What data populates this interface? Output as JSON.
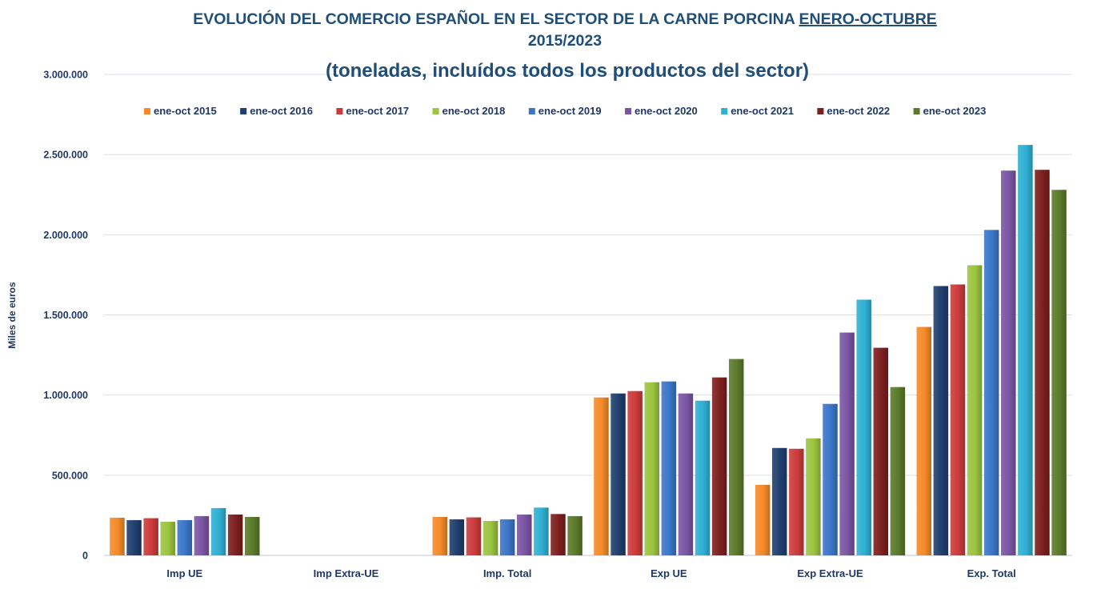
{
  "chart_data": {
    "type": "bar",
    "title_prefix": "EVOLUCIÓN DEL COMERCIO ESPAÑOL EN EL SECTOR DE LA CARNE PORCINA ",
    "title_underlined": "ENERO-OCTUBRE",
    "title_line2": "2015/2023",
    "subtitle": "(toneladas, incluídos todos los productos del sector)",
    "ylabel": "Miles de euros",
    "xlabel": "",
    "ylim": [
      0,
      3000000
    ],
    "yticks": [
      {
        "value": 0,
        "label": "0"
      },
      {
        "value": 500000,
        "label": "500.000"
      },
      {
        "value": 1000000,
        "label": "1.000.000"
      },
      {
        "value": 1500000,
        "label": "1.500.000"
      },
      {
        "value": 2000000,
        "label": "2.000.000"
      },
      {
        "value": 2500000,
        "label": "2.500.000"
      },
      {
        "value": 3000000,
        "label": "3.000.000"
      }
    ],
    "grid": true,
    "legend_position": "top",
    "categories": [
      "Imp UE",
      "Imp Extra-UE",
      "Imp. Total",
      "Exp UE",
      "Exp Extra-UE",
      "Exp. Total"
    ],
    "series": [
      {
        "name": "ene-oct 2015",
        "color": "#f58a27",
        "values": [
          235000,
          0,
          240000,
          985000,
          440000,
          1425000
        ]
      },
      {
        "name": "ene-oct 2016",
        "color": "#1f3f6e",
        "values": [
          220000,
          0,
          225000,
          1010000,
          670000,
          1680000
        ]
      },
      {
        "name": "ene-oct 2017",
        "color": "#cc3b3b",
        "values": [
          232000,
          0,
          237000,
          1025000,
          665000,
          1690000
        ]
      },
      {
        "name": "ene-oct 2018",
        "color": "#9bc43f",
        "values": [
          210000,
          0,
          215000,
          1080000,
          730000,
          1810000
        ]
      },
      {
        "name": "ene-oct 2019",
        "color": "#3a76c8",
        "values": [
          220000,
          0,
          225000,
          1085000,
          945000,
          2030000
        ]
      },
      {
        "name": "ene-oct 2020",
        "color": "#7b55a3",
        "values": [
          245000,
          0,
          255000,
          1010000,
          1390000,
          2400000
        ]
      },
      {
        "name": "ene-oct 2021",
        "color": "#2fb0d4",
        "values": [
          295000,
          0,
          298000,
          965000,
          1595000,
          2560000
        ]
      },
      {
        "name": "ene-oct 2022",
        "color": "#7d1f1f",
        "values": [
          255000,
          0,
          258000,
          1110000,
          1295000,
          2405000
        ]
      },
      {
        "name": "ene-oct 2023",
        "color": "#5b7a2a",
        "values": [
          240000,
          0,
          245000,
          1225000,
          1050000,
          2280000
        ]
      }
    ]
  }
}
